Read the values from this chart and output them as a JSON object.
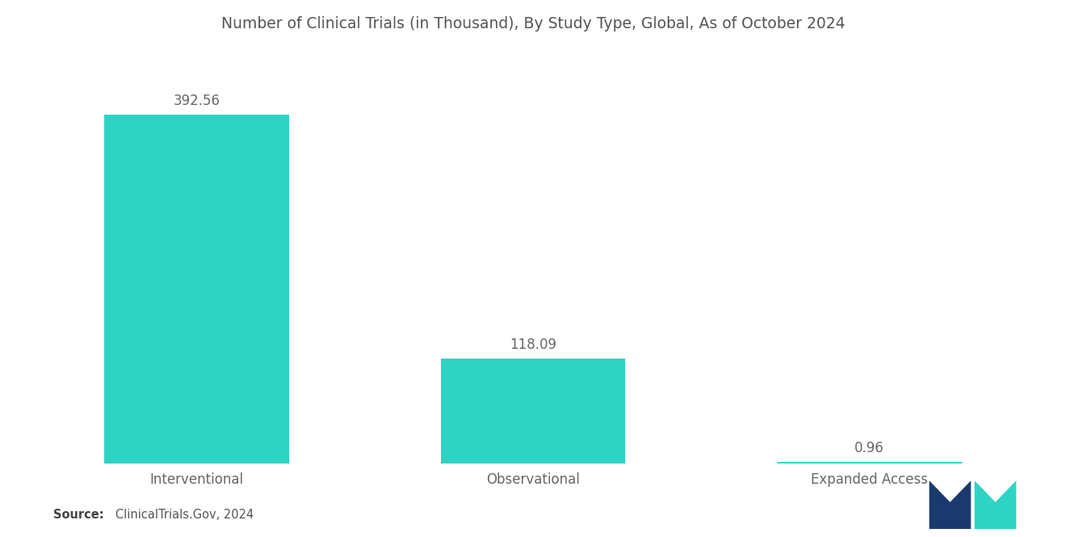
{
  "title": "Number of Clinical Trials (in Thousand), By Study Type, Global, As of October 2024",
  "categories": [
    "Interventional",
    "Observational",
    "Expanded Access"
  ],
  "values": [
    392.56,
    118.09,
    0.96
  ],
  "bar_color": "#2DD4C4",
  "value_labels": [
    "392.56",
    "118.09",
    "0.96"
  ],
  "source_bold": "Source:",
  "source_rest": "   ClinicalTrials.Gov, 2024",
  "title_fontsize": 13.5,
  "label_fontsize": 12,
  "value_fontsize": 12,
  "source_fontsize": 10.5,
  "background_color": "#ffffff",
  "text_color": "#666666",
  "ylim": [
    0,
    460
  ],
  "bar_width": 0.55
}
